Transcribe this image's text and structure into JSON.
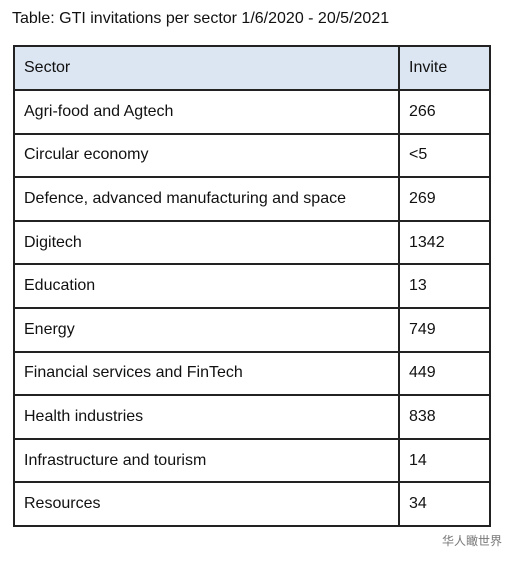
{
  "title": "Table: GTI invitations per sector 1/6/2020 - 20/5/2021",
  "table": {
    "header": [
      "Sector",
      "Invite"
    ],
    "rows": [
      [
        "Agri-food and Agtech",
        "266"
      ],
      [
        "Circular economy",
        "<5"
      ],
      [
        "Defence, advanced manufacturing and space",
        "269"
      ],
      [
        "Digitech",
        "1342"
      ],
      [
        "Education",
        "13"
      ],
      [
        "Energy",
        "749"
      ],
      [
        "Financial services and FinTech",
        "449"
      ],
      [
        "Health industries",
        "838"
      ],
      [
        "Infrastructure and tourism",
        "14"
      ],
      [
        "Resources",
        "34"
      ]
    ]
  },
  "watermark": "华人瞰世界"
}
